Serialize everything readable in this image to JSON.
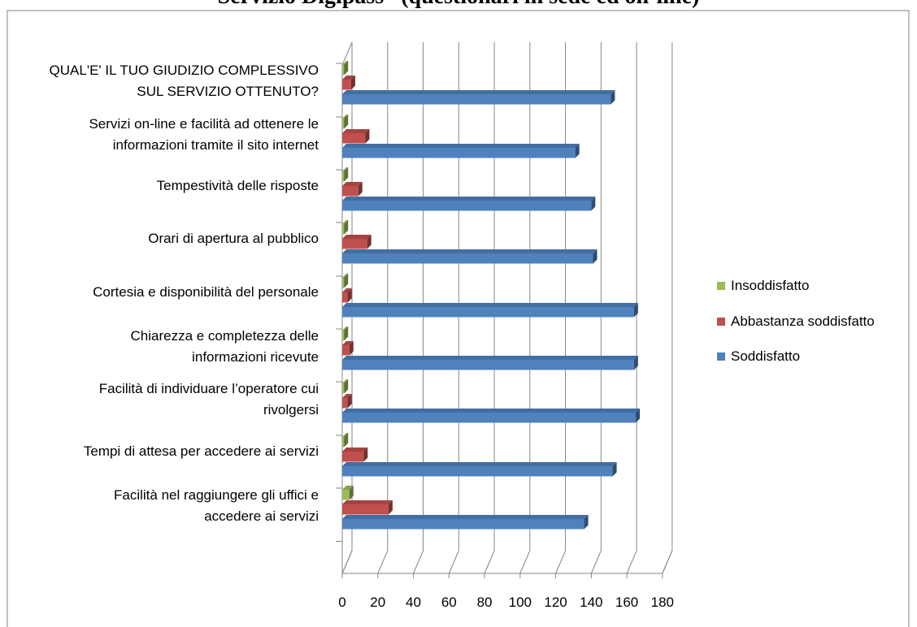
{
  "chart_data": {
    "type": "bar",
    "orientation": "horizontal",
    "title": "Servizio Digipass   (questionari in sede ed on-line)",
    "categories": [
      "QUAL'E' IL TUO GIUDIZIO COMPLESSIVO SUL SERVIZIO OTTENUTO?",
      "Servizi on-line e facilità ad ottenere le informazioni tramite il sito internet",
      "Tempestività delle risposte",
      "Orari di apertura al pubblico",
      "Cortesia e disponibilità del personale",
      "Chiarezza e completezza delle informazioni ricevute",
      "Facilità di individuare l’operatore cui rivolgersi",
      "Tempi di attesa per accedere ai servizi",
      "Facilità nel raggiungere gli uffici e accedere ai servizi"
    ],
    "series": [
      {
        "name": "Insoddisfatto",
        "color": "#9bbb59",
        "values": [
          1,
          1,
          1,
          1,
          1,
          1,
          1,
          1,
          4
        ]
      },
      {
        "name": "Abbastanza soddisfatto",
        "color": "#c0504d",
        "values": [
          5,
          13,
          9,
          14,
          3,
          4,
          3,
          12,
          26
        ]
      },
      {
        "name": "Soddisfatto",
        "color": "#4f81bd",
        "values": [
          151,
          131,
          140,
          141,
          164,
          164,
          165,
          152,
          136
        ]
      }
    ],
    "xticks": [
      "0",
      "20",
      "40",
      "60",
      "80",
      "100",
      "120",
      "140",
      "160",
      "180"
    ],
    "xlim": [
      0,
      180
    ],
    "grid": true,
    "legend": "right",
    "style": "3d"
  }
}
